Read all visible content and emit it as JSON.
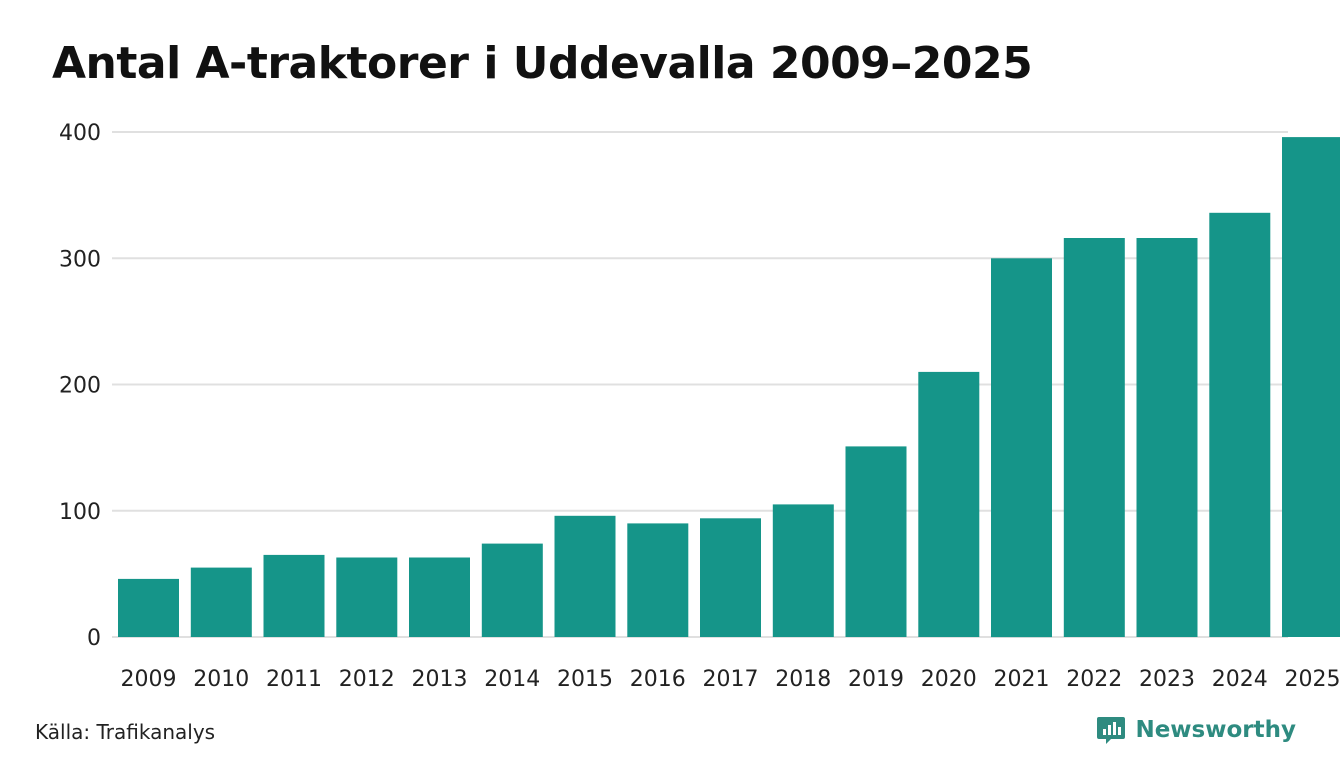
{
  "chart_data": {
    "type": "bar",
    "title": "Antal A-traktorer i Uddevalla 2009–2025",
    "xlabel": "",
    "ylabel": "",
    "categories": [
      "2009",
      "2010",
      "2011",
      "2012",
      "2013",
      "2014",
      "2015",
      "2016",
      "2017",
      "2018",
      "2019",
      "2020",
      "2021",
      "2022",
      "2023",
      "2024",
      "2025"
    ],
    "values": [
      46,
      55,
      65,
      63,
      63,
      74,
      96,
      90,
      94,
      105,
      151,
      210,
      300,
      316,
      316,
      336,
      396
    ],
    "ylim": [
      0,
      400
    ],
    "yticks": [
      0,
      100,
      200,
      300,
      400
    ],
    "grid": true,
    "bar_color": "#159589",
    "grid_color": "#e0e0e0"
  },
  "footer": {
    "source": "Källa: Trafikanalys",
    "brand": "Newsworthy",
    "brand_color": "#2e8b80"
  }
}
